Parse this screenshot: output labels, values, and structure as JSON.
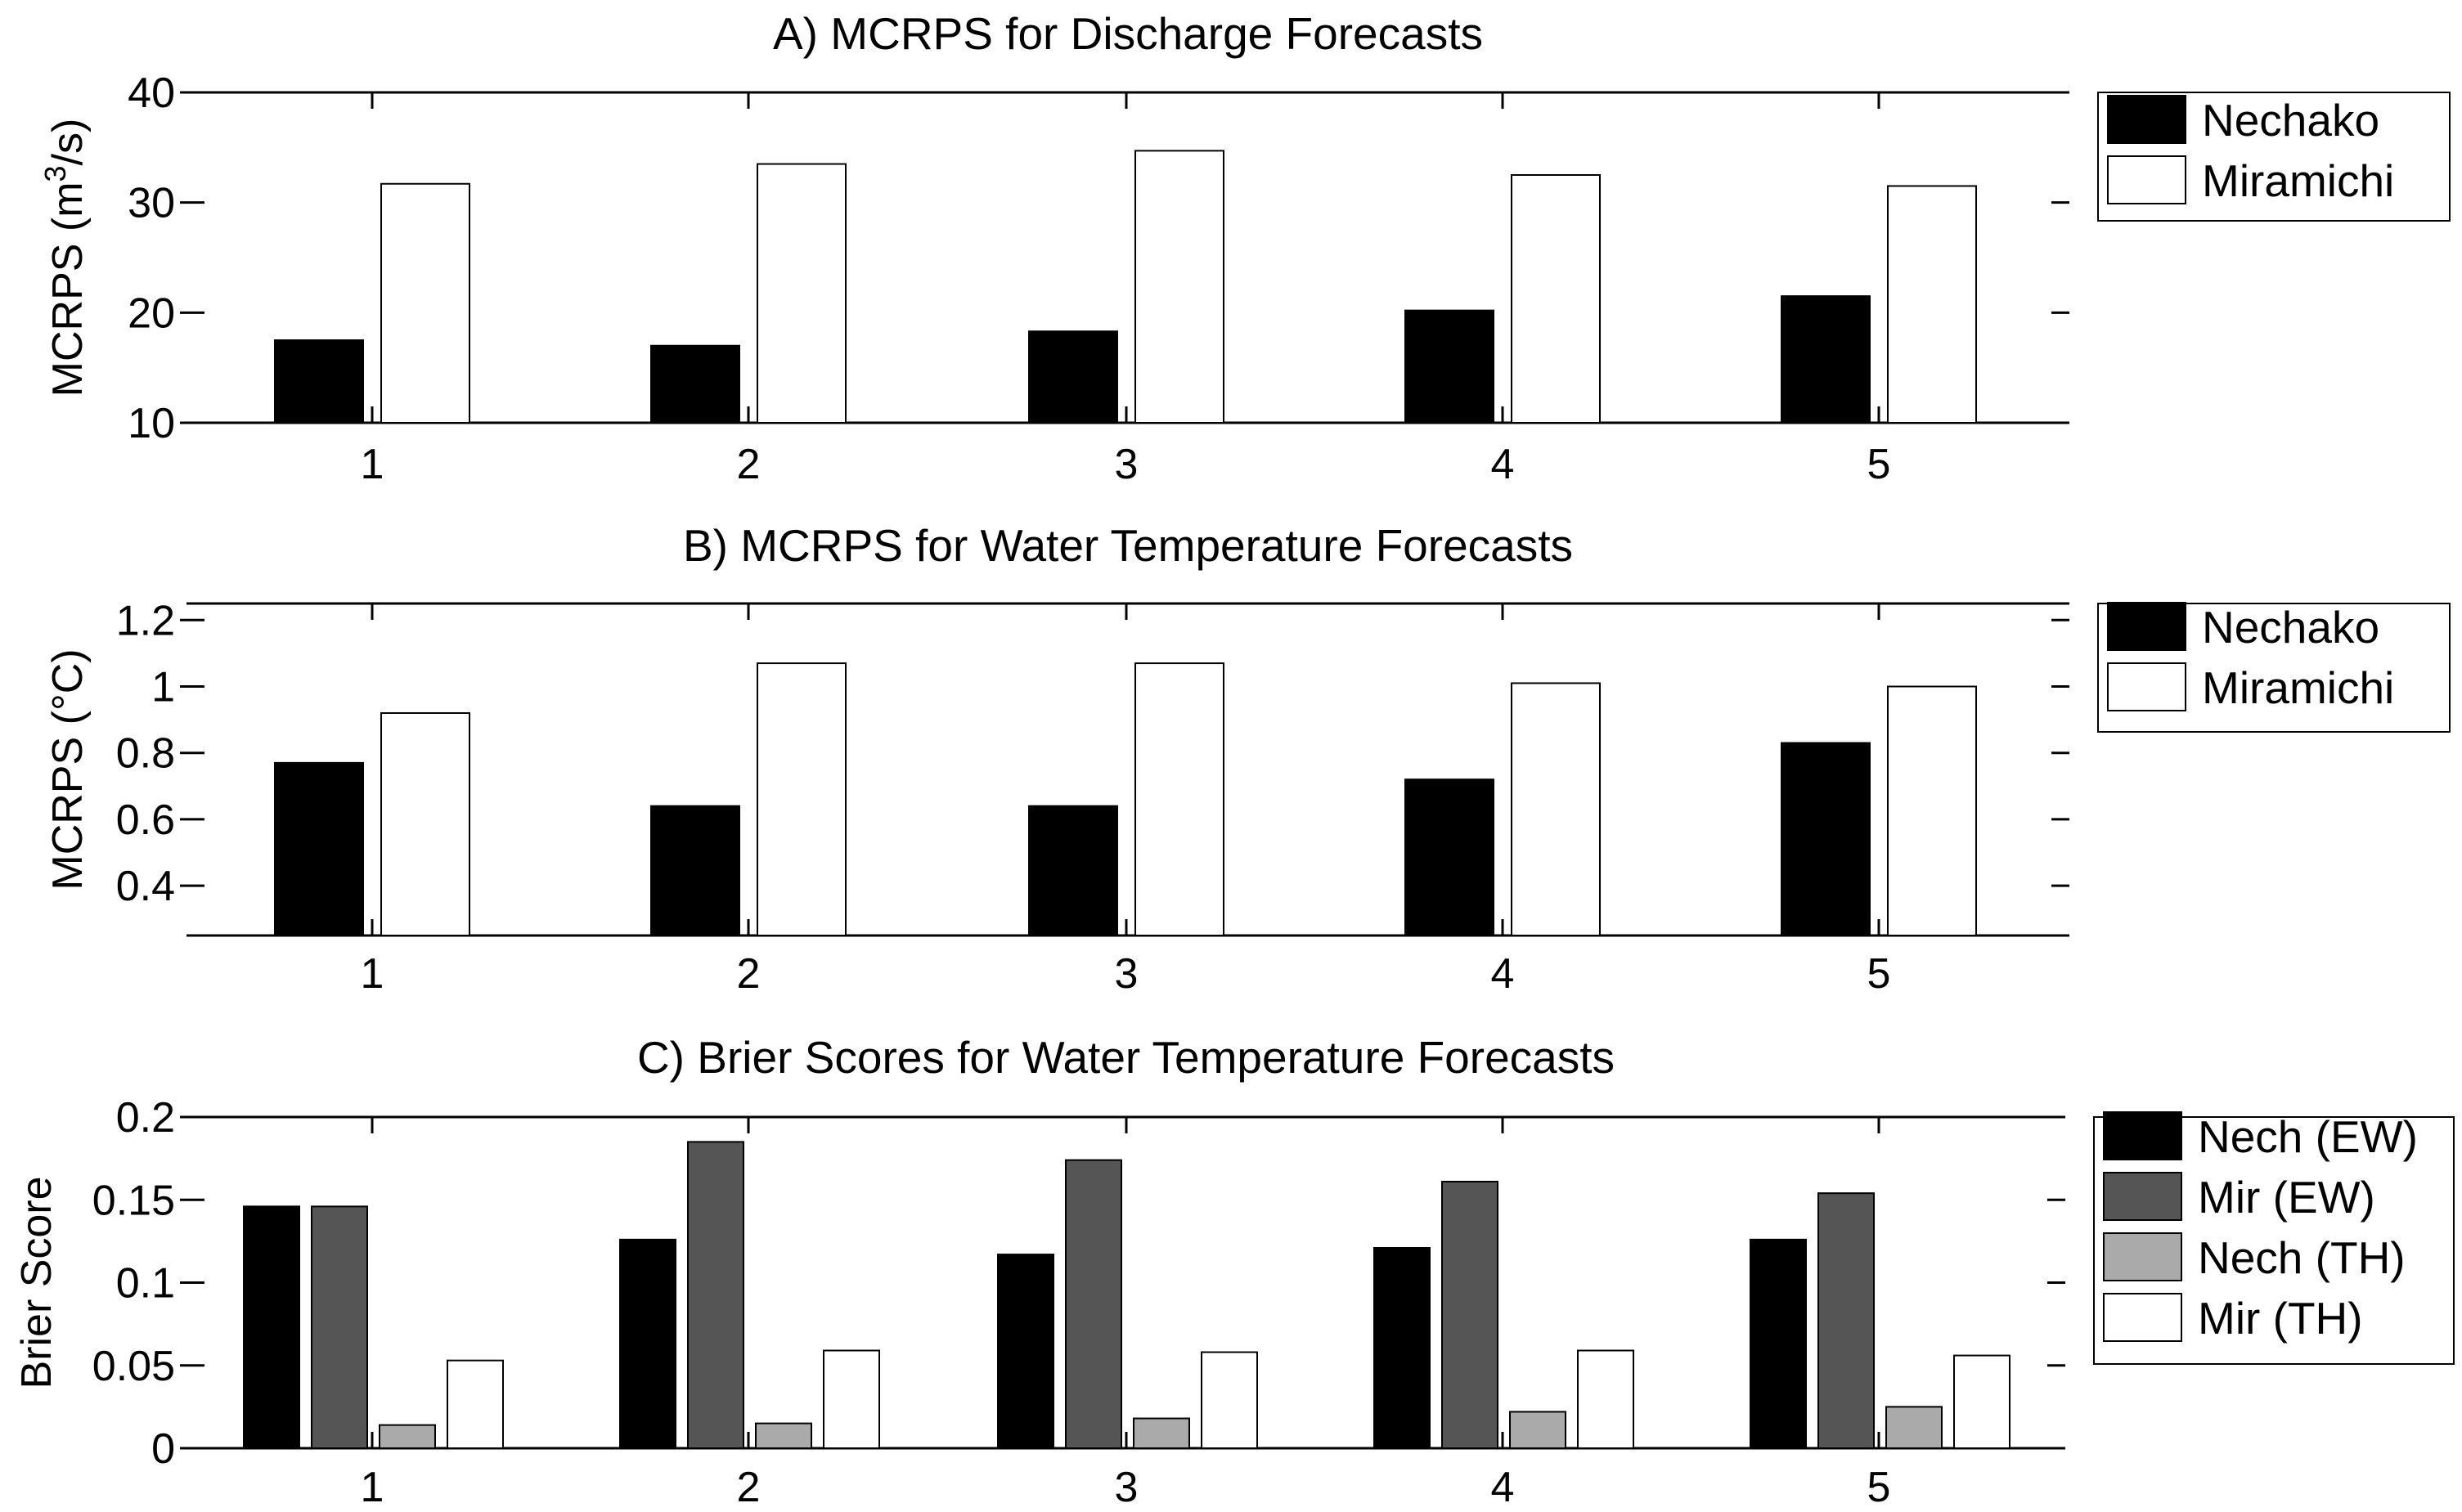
{
  "chart_data": [
    {
      "type": "bar",
      "title": "A) MCRPS for Discharge Forecasts",
      "xlabel": "",
      "ylabel_main": "MCRPS (m",
      "ylabel_sup": "3",
      "ylabel_tail": "/s)",
      "categories": [
        "1",
        "2",
        "3",
        "4",
        "5"
      ],
      "ylim": [
        10,
        40
      ],
      "yticks": [
        10,
        20,
        30,
        40
      ],
      "ytick_labels": [
        "10",
        "20",
        "30",
        "40"
      ],
      "legend_position": "right",
      "series": [
        {
          "name": "Nechako",
          "fill": "#000000",
          "values": [
            17.5,
            17.0,
            18.3,
            20.2,
            21.5
          ]
        },
        {
          "name": "Miramichi",
          "fill": "#ffffff",
          "values": [
            31.7,
            33.5,
            34.7,
            32.5,
            31.5
          ]
        }
      ]
    },
    {
      "type": "bar",
      "title": "B) MCRPS for Water Temperature Forecasts",
      "xlabel": "",
      "ylabel_main": "MCRPS (°C)",
      "ylabel_sup": "",
      "ylabel_tail": "",
      "categories": [
        "1",
        "2",
        "3",
        "4",
        "5"
      ],
      "ylim": [
        0.25,
        1.25
      ],
      "yticks": [
        0.4,
        0.6,
        0.8,
        1.0,
        1.2
      ],
      "ytick_labels": [
        "0.4",
        "0.6",
        "0.8",
        "1",
        "1.2"
      ],
      "legend_position": "right",
      "series": [
        {
          "name": "Nechako",
          "fill": "#000000",
          "values": [
            0.77,
            0.64,
            0.64,
            0.72,
            0.83
          ]
        },
        {
          "name": "Miramichi",
          "fill": "#ffffff",
          "values": [
            0.92,
            1.07,
            1.07,
            1.01,
            1.0
          ]
        }
      ]
    },
    {
      "type": "bar",
      "title": "C) Brier Scores for Water Temperature Forecasts",
      "xlabel": "",
      "ylabel_main": "Brier Score",
      "ylabel_sup": "",
      "ylabel_tail": "",
      "categories": [
        "1",
        "2",
        "3",
        "4",
        "5"
      ],
      "ylim": [
        0,
        0.2
      ],
      "yticks": [
        0,
        0.05,
        0.1,
        0.15,
        0.2
      ],
      "ytick_labels": [
        "0",
        "0.05",
        "0.1",
        "0.15",
        "0.2"
      ],
      "legend_position": "right",
      "series": [
        {
          "name": "Nech (EW)",
          "fill": "#000000",
          "values": [
            0.146,
            0.126,
            0.117,
            0.121,
            0.126
          ]
        },
        {
          "name": "Mir (EW)",
          "fill": "#555555",
          "values": [
            0.146,
            0.185,
            0.174,
            0.161,
            0.154
          ]
        },
        {
          "name": "Nech (TH)",
          "fill": "#aaaaaa",
          "values": [
            0.014,
            0.015,
            0.018,
            0.022,
            0.025
          ]
        },
        {
          "name": "Mir (TH)",
          "fill": "#ffffff",
          "values": [
            0.053,
            0.059,
            0.058,
            0.059,
            0.056
          ]
        }
      ]
    }
  ]
}
